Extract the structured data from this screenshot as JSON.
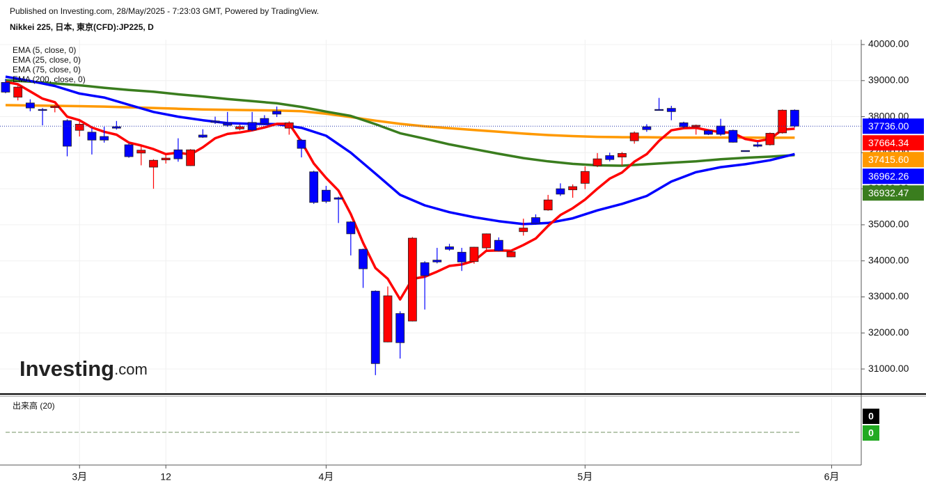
{
  "header": {
    "published": "Published on Investing.com, 28/May/2025 - 7:23:03 GMT, Powered by TradingView.",
    "instrument": "Nikkei 225, 日本, 東京(CFD):JP225, D"
  },
  "logo": {
    "name": "Investing",
    "suffix": ".com"
  },
  "chart_data": {
    "type": "candlestick",
    "up_color": "#ff0000",
    "down_color": "#0000ff",
    "grid": true,
    "x": [
      0,
      1,
      2,
      3,
      4,
      5,
      6,
      7,
      8,
      9,
      10,
      11,
      12,
      13,
      14,
      15,
      16,
      17,
      18,
      19,
      20,
      21,
      22,
      23,
      24,
      25,
      26,
      27,
      28,
      29,
      30,
      31,
      32,
      33,
      34,
      35,
      36,
      37,
      38,
      39,
      40,
      41,
      42,
      43,
      44,
      45,
      46,
      47,
      48,
      49,
      50,
      51,
      52,
      53,
      54,
      55,
      56,
      57,
      58,
      59,
      60,
      61,
      62,
      63,
      64
    ],
    "open": [
      38950,
      38540,
      38380,
      38200,
      38250,
      37890,
      37620,
      37570,
      37450,
      37720,
      37220,
      36990,
      36600,
      36800,
      37080,
      36640,
      37490,
      37880,
      37820,
      37660,
      37840,
      37950,
      38150,
      37680,
      37350,
      36470,
      35960,
      35750,
      35080,
      34320,
      33160,
      31750,
      32540,
      32330,
      33950,
      34020,
      34390,
      34240,
      33980,
      34360,
      34570,
      34110,
      34810,
      35200,
      35410,
      36000,
      35970,
      36150,
      36640,
      36920,
      36880,
      37330,
      37720,
      38200,
      38230,
      37830,
      37720,
      37610,
      37740,
      37620,
      37060,
      37220,
      37220,
      37550,
      38180
    ],
    "high": [
      39050,
      38900,
      38480,
      38240,
      38330,
      37930,
      37880,
      37680,
      37720,
      37880,
      37260,
      37170,
      36820,
      36980,
      37400,
      37100,
      37650,
      38000,
      38130,
      37780,
      38130,
      38040,
      38280,
      37870,
      37380,
      36500,
      36080,
      35780,
      35100,
      34340,
      33180,
      33290,
      32600,
      34660,
      33990,
      34360,
      34470,
      34360,
      34390,
      34760,
      34650,
      34280,
      35170,
      35290,
      35830,
      36150,
      36120,
      36620,
      36990,
      37000,
      37020,
      37590,
      37790,
      38520,
      38300,
      37860,
      37780,
      37640,
      37940,
      37640,
      37060,
      37300,
      37560,
      38200,
      38200
    ],
    "low": [
      38650,
      38450,
      38150,
      37760,
      38120,
      36900,
      37450,
      36950,
      37280,
      37640,
      36860,
      36650,
      36000,
      36700,
      36750,
      36630,
      37410,
      37800,
      37720,
      37620,
      37600,
      37760,
      37990,
      37500,
      36870,
      35580,
      35600,
      35050,
      34150,
      33250,
      30830,
      31740,
      31290,
      32320,
      32650,
      33930,
      34280,
      33720,
      33920,
      34310,
      34260,
      34100,
      34700,
      35000,
      35390,
      35800,
      35750,
      35990,
      36600,
      36760,
      36640,
      37250,
      37580,
      38170,
      37900,
      37680,
      37500,
      37490,
      37470,
      37280,
      37030,
      37150,
      37200,
      37530,
      37700
    ],
    "close": [
      38680,
      38820,
      38240,
      38180,
      38290,
      37180,
      37790,
      37350,
      37350,
      37680,
      36890,
      37070,
      36790,
      36850,
      36830,
      37080,
      37430,
      37840,
      37760,
      37720,
      37630,
      37800,
      38070,
      37830,
      37120,
      35620,
      35650,
      35710,
      34750,
      33780,
      31150,
      33030,
      31730,
      34630,
      33590,
      33970,
      34320,
      33970,
      34380,
      34750,
      34280,
      34250,
      34910,
      35040,
      35690,
      35850,
      36060,
      36480,
      36830,
      36810,
      36980,
      37550,
      37640,
      38180,
      38140,
      37720,
      37760,
      37510,
      37510,
      37290,
      37040,
      37180,
      37540,
      38180,
      37736
    ],
    "last_close_label": "37736.00",
    "series": [
      {
        "name": "EMA (5, close, 0)",
        "color": "#ff0000",
        "last_label": "37664.34",
        "x": [
          0,
          1,
          2,
          3,
          4,
          5,
          6,
          7,
          8,
          9,
          10,
          11,
          12,
          13,
          14,
          15,
          16,
          17,
          18,
          19,
          20,
          21,
          22,
          23,
          24,
          25,
          26,
          27,
          28,
          29,
          30,
          31,
          32,
          33,
          34,
          35,
          36,
          37,
          38,
          39,
          40,
          41,
          42,
          43,
          44,
          45,
          46,
          47,
          48,
          49,
          50,
          51,
          52,
          53,
          54,
          55,
          56,
          57,
          58,
          59,
          60,
          61,
          62,
          63,
          64
        ],
        "values": [
          38960,
          38900,
          38700,
          38500,
          38400,
          38000,
          37900,
          37700,
          37580,
          37500,
          37280,
          37200,
          37100,
          36960,
          37000,
          36950,
          37150,
          37400,
          37520,
          37560,
          37620,
          37700,
          37800,
          37800,
          37300,
          36700,
          36300,
          35950,
          35300,
          34500,
          33800,
          33500,
          32930,
          33500,
          33560,
          33700,
          33860,
          33900,
          34000,
          34280,
          34290,
          34280,
          34440,
          34620,
          34970,
          35270,
          35460,
          35700,
          36000,
          36280,
          36450,
          36750,
          36960,
          37330,
          37620,
          37680,
          37690,
          37620,
          37570,
          37550,
          37380,
          37320,
          37380,
          37640,
          37664.34
        ]
      },
      {
        "name": "EMA (25, close, 0)",
        "color": "#0000ff",
        "last_label": "36962.26",
        "x": [
          0,
          2,
          4,
          6,
          8,
          10,
          12,
          14,
          16,
          18,
          20,
          22,
          24,
          26,
          28,
          30,
          32,
          34,
          36,
          38,
          40,
          42,
          44,
          46,
          48,
          50,
          52,
          54,
          56,
          58,
          60,
          62,
          64
        ],
        "values": [
          39110,
          38990,
          38850,
          38640,
          38530,
          38330,
          38130,
          38000,
          37900,
          37820,
          37800,
          37790,
          37690,
          37470,
          37000,
          36420,
          35830,
          35540,
          35350,
          35210,
          35100,
          35020,
          35050,
          35180,
          35400,
          35580,
          35800,
          36200,
          36460,
          36600,
          36680,
          36790,
          36962.26
        ]
      },
      {
        "name": "EMA (75, close, 0)",
        "color": "#3a7d1e",
        "last_label": "36932.47",
        "x": [
          0,
          2,
          4,
          6,
          8,
          10,
          12,
          14,
          16,
          18,
          20,
          22,
          24,
          26,
          28,
          30,
          32,
          34,
          36,
          38,
          40,
          42,
          44,
          46,
          48,
          50,
          52,
          54,
          56,
          58,
          60,
          62,
          64
        ],
        "values": [
          39010,
          38970,
          38920,
          38870,
          38800,
          38740,
          38690,
          38620,
          38560,
          38490,
          38430,
          38370,
          38270,
          38140,
          38020,
          37790,
          37540,
          37390,
          37230,
          37100,
          36970,
          36850,
          36760,
          36690,
          36650,
          36640,
          36680,
          36720,
          36760,
          36820,
          36860,
          36890,
          36932.47
        ]
      },
      {
        "name": "EMA (200, close, 0)",
        "color": "#ff9900",
        "last_label": "37415.60",
        "x": [
          0,
          2,
          4,
          6,
          8,
          10,
          12,
          14,
          16,
          18,
          20,
          22,
          24,
          26,
          28,
          30,
          32,
          34,
          36,
          38,
          40,
          42,
          44,
          46,
          48,
          50,
          52,
          54,
          56,
          58,
          60,
          62,
          64
        ],
        "values": [
          38320,
          38310,
          38300,
          38290,
          38280,
          38260,
          38240,
          38220,
          38200,
          38190,
          38180,
          38170,
          38150,
          38080,
          37990,
          37890,
          37800,
          37730,
          37680,
          37630,
          37580,
          37530,
          37490,
          37460,
          37440,
          37430,
          37430,
          37420,
          37420,
          37420,
          37420,
          37415,
          37415.6
        ]
      }
    ],
    "xlim": [
      -0.45,
      69.4
    ],
    "xticks": [
      {
        "value": 6,
        "label": "3月"
      },
      {
        "value": 13,
        "label": "12"
      },
      {
        "value": 26,
        "label": "4月"
      },
      {
        "value": 47,
        "label": "5月"
      },
      {
        "value": 67,
        "label": "6月"
      }
    ],
    "ylim": [
      30306,
      40135
    ],
    "yticks": [
      {
        "value": 31000,
        "label": "31000.00"
      },
      {
        "value": 32000,
        "label": "32000.00"
      },
      {
        "value": 33000,
        "label": "33000.00"
      },
      {
        "value": 34000,
        "label": "34000.00"
      },
      {
        "value": 35000,
        "label": "35000.00"
      },
      {
        "value": 36000,
        "label": "36000.00"
      },
      {
        "value": 37000,
        "label": "37000.00"
      },
      {
        "value": 38000,
        "label": "38000.00"
      },
      {
        "value": 39000,
        "label": "39000.00"
      },
      {
        "value": 40000,
        "label": "40000.00"
      }
    ],
    "volume": {
      "title": "出来高 (20)",
      "value": 0,
      "ma": 0,
      "value_color": "#000000",
      "ma_color": "#22aa22"
    }
  }
}
